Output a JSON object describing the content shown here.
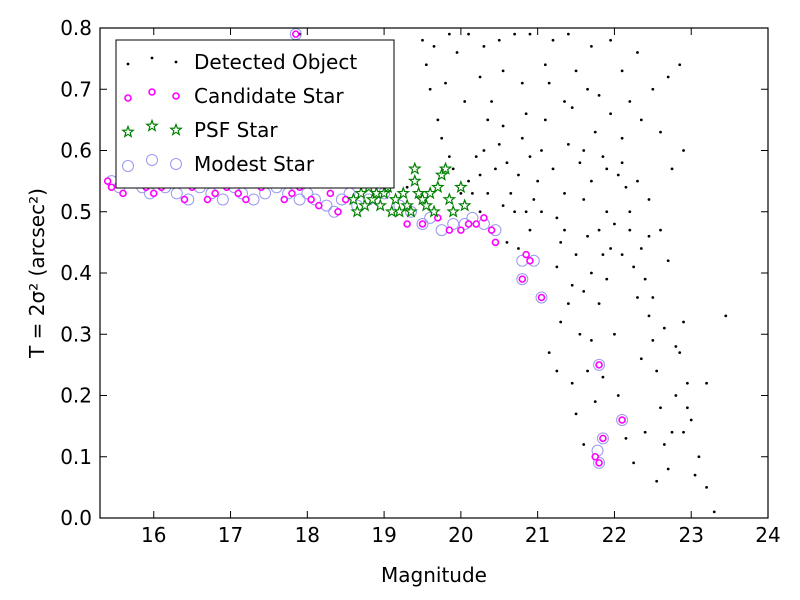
{
  "chart_data": {
    "type": "scatter",
    "xlabel": "Magnitude",
    "ylabel": "T = 2σ² (arcsec²)",
    "xlim": [
      15.3,
      24.0
    ],
    "ylim": [
      0.0,
      0.8
    ],
    "xticks": [
      16,
      17,
      18,
      19,
      20,
      21,
      22,
      23,
      24
    ],
    "yticks": [
      0.0,
      0.1,
      0.2,
      0.3,
      0.4,
      0.5,
      0.6,
      0.7,
      0.8
    ],
    "xtick_labels": [
      "16",
      "17",
      "18",
      "19",
      "20",
      "21",
      "22",
      "23",
      "24"
    ],
    "ytick_labels": [
      "0.0",
      "0.1",
      "0.2",
      "0.3",
      "0.4",
      "0.5",
      "0.6",
      "0.7",
      "0.8"
    ],
    "grid": false,
    "legend_placement": "top-left",
    "colors": {
      "detected": "#000000",
      "candidate": "#ff00ff",
      "psf": "#008000",
      "modest": "#9999ee"
    },
    "series": [
      {
        "name": "Detected Object",
        "marker": "dot",
        "points": [
          [
            17.9,
            0.79
          ],
          [
            18.8,
            0.55
          ],
          [
            19.3,
            0.54
          ],
          [
            19.5,
            0.78
          ],
          [
            19.55,
            0.74
          ],
          [
            19.6,
            0.7
          ],
          [
            19.7,
            0.65
          ],
          [
            19.75,
            0.62
          ],
          [
            19.85,
            0.59
          ],
          [
            19.9,
            0.57
          ],
          [
            20.0,
            0.53
          ],
          [
            20.1,
            0.55
          ],
          [
            20.2,
            0.59
          ],
          [
            20.25,
            0.56
          ],
          [
            20.3,
            0.6
          ],
          [
            20.35,
            0.65
          ],
          [
            20.4,
            0.68
          ],
          [
            20.45,
            0.57
          ],
          [
            20.5,
            0.61
          ],
          [
            20.55,
            0.64
          ],
          [
            20.6,
            0.58
          ],
          [
            20.65,
            0.53
          ],
          [
            20.7,
            0.5
          ],
          [
            20.75,
            0.56
          ],
          [
            20.8,
            0.62
          ],
          [
            20.85,
            0.66
          ],
          [
            20.9,
            0.59
          ],
          [
            20.95,
            0.52
          ],
          [
            21.0,
            0.55
          ],
          [
            21.05,
            0.6
          ],
          [
            21.1,
            0.65
          ],
          [
            21.15,
            0.71
          ],
          [
            21.2,
            0.57
          ],
          [
            21.25,
            0.49
          ],
          [
            21.3,
            0.45
          ],
          [
            21.35,
            0.53
          ],
          [
            21.4,
            0.61
          ],
          [
            21.45,
            0.67
          ],
          [
            21.5,
            0.73
          ],
          [
            21.55,
            0.58
          ],
          [
            21.6,
            0.52
          ],
          [
            21.65,
            0.46
          ],
          [
            21.7,
            0.55
          ],
          [
            21.75,
            0.63
          ],
          [
            21.8,
            0.69
          ],
          [
            21.85,
            0.59
          ],
          [
            21.9,
            0.5
          ],
          [
            21.95,
            0.44
          ],
          [
            22.0,
            0.48
          ],
          [
            22.05,
            0.56
          ],
          [
            22.1,
            0.62
          ],
          [
            22.15,
            0.54
          ],
          [
            22.2,
            0.47
          ],
          [
            22.25,
            0.41
          ],
          [
            22.3,
            0.36
          ],
          [
            22.35,
            0.44
          ],
          [
            22.4,
            0.39
          ],
          [
            22.45,
            0.33
          ],
          [
            22.5,
            0.29
          ],
          [
            22.55,
            0.24
          ],
          [
            22.6,
            0.18
          ],
          [
            22.65,
            0.12
          ],
          [
            22.7,
            0.08
          ],
          [
            22.75,
            0.14
          ],
          [
            22.8,
            0.2
          ],
          [
            22.85,
            0.27
          ],
          [
            22.9,
            0.32
          ],
          [
            22.95,
            0.22
          ],
          [
            23.0,
            0.16
          ],
          [
            23.1,
            0.1
          ],
          [
            23.2,
            0.05
          ],
          [
            23.3,
            0.01
          ],
          [
            23.45,
            0.33
          ],
          [
            22.9,
            0.6
          ],
          [
            22.85,
            0.74
          ],
          [
            22.7,
            0.72
          ],
          [
            22.5,
            0.7
          ],
          [
            22.3,
            0.76
          ],
          [
            22.1,
            0.73
          ],
          [
            21.95,
            0.78
          ],
          [
            21.7,
            0.77
          ],
          [
            21.4,
            0.79
          ],
          [
            21.2,
            0.78
          ],
          [
            20.9,
            0.79
          ],
          [
            20.7,
            0.79
          ],
          [
            20.5,
            0.78
          ],
          [
            20.3,
            0.77
          ],
          [
            20.1,
            0.79
          ],
          [
            19.95,
            0.76
          ],
          [
            19.85,
            0.79
          ],
          [
            19.65,
            0.77
          ],
          [
            21.3,
            0.32
          ],
          [
            21.45,
            0.38
          ],
          [
            21.55,
            0.3
          ],
          [
            21.65,
            0.24
          ],
          [
            21.5,
            0.17
          ],
          [
            21.6,
            0.12
          ],
          [
            21.75,
            0.19
          ],
          [
            21.85,
            0.23
          ],
          [
            22.05,
            0.2
          ],
          [
            22.15,
            0.13
          ],
          [
            22.25,
            0.09
          ],
          [
            22.4,
            0.14
          ],
          [
            22.55,
            0.06
          ],
          [
            22.35,
            0.26
          ],
          [
            22.0,
            0.3
          ],
          [
            21.8,
            0.35
          ],
          [
            21.7,
            0.4
          ],
          [
            21.9,
            0.39
          ],
          [
            21.15,
            0.27
          ],
          [
            21.05,
            0.36
          ],
          [
            21.25,
            0.41
          ],
          [
            21.35,
            0.47
          ],
          [
            21.05,
            0.5
          ],
          [
            20.6,
            0.45
          ],
          [
            20.75,
            0.44
          ],
          [
            20.85,
            0.5
          ],
          [
            20.25,
            0.5
          ],
          [
            20.15,
            0.53
          ],
          [
            20.35,
            0.53
          ],
          [
            20.55,
            0.51
          ],
          [
            20.9,
            0.47
          ],
          [
            21.5,
            0.43
          ],
          [
            21.8,
            0.47
          ],
          [
            22.2,
            0.5
          ],
          [
            22.45,
            0.52
          ],
          [
            22.6,
            0.47
          ],
          [
            22.7,
            0.42
          ],
          [
            22.5,
            0.36
          ],
          [
            22.65,
            0.31
          ],
          [
            22.8,
            0.28
          ],
          [
            22.95,
            0.18
          ],
          [
            23.05,
            0.07
          ],
          [
            22.9,
            0.14
          ],
          [
            23.2,
            0.22
          ],
          [
            22.75,
            0.57
          ],
          [
            22.6,
            0.63
          ],
          [
            22.35,
            0.65
          ],
          [
            22.2,
            0.68
          ],
          [
            21.95,
            0.66
          ],
          [
            21.65,
            0.7
          ],
          [
            21.35,
            0.68
          ],
          [
            21.1,
            0.74
          ],
          [
            20.8,
            0.71
          ],
          [
            20.55,
            0.73
          ],
          [
            20.25,
            0.72
          ],
          [
            20.05,
            0.68
          ],
          [
            19.8,
            0.71
          ],
          [
            21.6,
            0.6
          ],
          [
            21.9,
            0.57
          ],
          [
            22.1,
            0.58
          ],
          [
            22.3,
            0.55
          ],
          [
            22.45,
            0.46
          ],
          [
            22.1,
            0.43
          ],
          [
            21.85,
            0.43
          ],
          [
            21.6,
            0.37
          ],
          [
            21.4,
            0.35
          ],
          [
            21.25,
            0.24
          ],
          [
            21.45,
            0.22
          ],
          [
            21.7,
            0.29
          ]
        ]
      },
      {
        "name": "Candidate Star",
        "marker": "ring",
        "points": [
          [
            15.4,
            0.55
          ],
          [
            15.45,
            0.54
          ],
          [
            15.6,
            0.53
          ],
          [
            15.8,
            0.55
          ],
          [
            15.9,
            0.54
          ],
          [
            16.0,
            0.53
          ],
          [
            16.1,
            0.54
          ],
          [
            16.2,
            0.55
          ],
          [
            16.4,
            0.52
          ],
          [
            16.5,
            0.54
          ],
          [
            16.7,
            0.52
          ],
          [
            16.8,
            0.53
          ],
          [
            16.95,
            0.54
          ],
          [
            17.1,
            0.53
          ],
          [
            17.2,
            0.52
          ],
          [
            17.4,
            0.54
          ],
          [
            17.55,
            0.55
          ],
          [
            17.7,
            0.52
          ],
          [
            17.8,
            0.53
          ],
          [
            17.9,
            0.54
          ],
          [
            18.05,
            0.52
          ],
          [
            18.15,
            0.51
          ],
          [
            18.3,
            0.53
          ],
          [
            18.4,
            0.5
          ],
          [
            18.5,
            0.52
          ],
          [
            19.3,
            0.48
          ],
          [
            19.5,
            0.48
          ],
          [
            19.7,
            0.49
          ],
          [
            19.85,
            0.47
          ],
          [
            20.0,
            0.47
          ],
          [
            20.1,
            0.48
          ],
          [
            20.2,
            0.48
          ],
          [
            20.3,
            0.49
          ],
          [
            20.4,
            0.47
          ],
          [
            20.45,
            0.45
          ],
          [
            20.8,
            0.39
          ],
          [
            20.85,
            0.43
          ],
          [
            20.9,
            0.42
          ],
          [
            21.05,
            0.36
          ],
          [
            21.8,
            0.25
          ],
          [
            22.1,
            0.16
          ],
          [
            21.85,
            0.13
          ],
          [
            21.75,
            0.1
          ],
          [
            21.8,
            0.09
          ],
          [
            17.85,
            0.79
          ]
        ]
      },
      {
        "name": "PSF Star",
        "marker": "star",
        "points": [
          [
            18.6,
            0.52
          ],
          [
            18.7,
            0.53
          ],
          [
            18.75,
            0.51
          ],
          [
            18.8,
            0.54
          ],
          [
            18.85,
            0.52
          ],
          [
            18.9,
            0.53
          ],
          [
            18.95,
            0.51
          ],
          [
            19.0,
            0.53
          ],
          [
            19.05,
            0.54
          ],
          [
            19.15,
            0.52
          ],
          [
            19.2,
            0.5
          ],
          [
            19.25,
            0.53
          ],
          [
            19.3,
            0.51
          ],
          [
            19.35,
            0.5
          ],
          [
            19.4,
            0.55
          ],
          [
            19.45,
            0.53
          ],
          [
            19.5,
            0.52
          ],
          [
            19.55,
            0.51
          ],
          [
            19.6,
            0.53
          ],
          [
            19.65,
            0.5
          ],
          [
            19.7,
            0.54
          ],
          [
            19.75,
            0.56
          ],
          [
            19.8,
            0.57
          ],
          [
            19.85,
            0.52
          ],
          [
            19.9,
            0.5
          ],
          [
            20.0,
            0.54
          ],
          [
            20.05,
            0.51
          ],
          [
            18.65,
            0.5
          ],
          [
            18.9,
            0.55
          ],
          [
            19.1,
            0.5
          ],
          [
            19.4,
            0.57
          ]
        ]
      },
      {
        "name": "Modest Star",
        "marker": "open-circle",
        "points": [
          [
            15.45,
            0.55
          ],
          [
            15.55,
            0.54
          ],
          [
            15.7,
            0.55
          ],
          [
            15.85,
            0.54
          ],
          [
            15.95,
            0.53
          ],
          [
            16.05,
            0.55
          ],
          [
            16.15,
            0.54
          ],
          [
            16.3,
            0.53
          ],
          [
            16.45,
            0.52
          ],
          [
            16.6,
            0.54
          ],
          [
            16.75,
            0.53
          ],
          [
            16.9,
            0.52
          ],
          [
            17.05,
            0.54
          ],
          [
            17.15,
            0.53
          ],
          [
            17.3,
            0.52
          ],
          [
            17.45,
            0.53
          ],
          [
            17.6,
            0.54
          ],
          [
            17.75,
            0.53
          ],
          [
            17.9,
            0.52
          ],
          [
            18.0,
            0.53
          ],
          [
            18.1,
            0.52
          ],
          [
            18.25,
            0.51
          ],
          [
            18.35,
            0.5
          ],
          [
            18.45,
            0.52
          ],
          [
            18.55,
            0.53
          ],
          [
            18.65,
            0.51
          ],
          [
            18.8,
            0.52
          ],
          [
            19.0,
            0.53
          ],
          [
            19.2,
            0.51
          ],
          [
            19.35,
            0.5
          ],
          [
            19.5,
            0.48
          ],
          [
            19.6,
            0.49
          ],
          [
            19.75,
            0.47
          ],
          [
            19.9,
            0.48
          ],
          [
            20.05,
            0.48
          ],
          [
            20.15,
            0.49
          ],
          [
            20.3,
            0.48
          ],
          [
            20.45,
            0.47
          ],
          [
            20.8,
            0.42
          ],
          [
            20.95,
            0.42
          ],
          [
            21.05,
            0.36
          ],
          [
            21.8,
            0.25
          ],
          [
            22.1,
            0.16
          ],
          [
            21.85,
            0.13
          ],
          [
            21.78,
            0.11
          ],
          [
            21.8,
            0.09
          ],
          [
            17.85,
            0.79
          ],
          [
            20.8,
            0.39
          ]
        ]
      }
    ]
  }
}
